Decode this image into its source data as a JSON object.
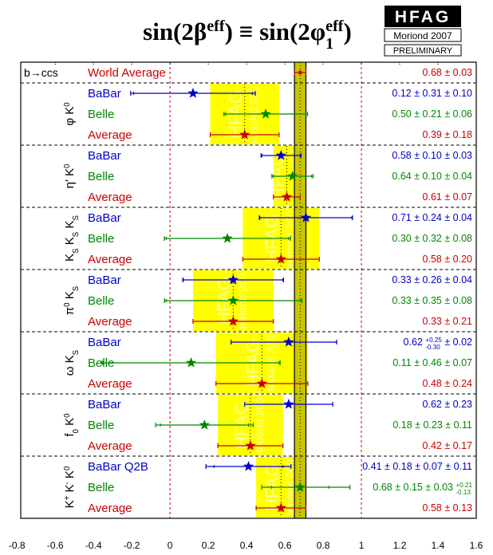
{
  "chart_data": {
    "type": "forest",
    "title_segments": [
      "sin(2β",
      {
        "sup": "eff"
      },
      ") ≡ sin(2φ",
      {
        "sub": "1",
        "sup": "eff"
      },
      ")"
    ],
    "badge": {
      "logo": "HFAG",
      "conference": "Moriond 2007",
      "status": "PRELIMINARY"
    },
    "watermark": [
      "HFAG",
      "Moriond 2007"
    ],
    "xlim": [
      -0.78,
      1.6
    ],
    "xticks": [
      -0.8,
      -0.6,
      -0.4,
      -0.2,
      0,
      0.2,
      0.4,
      0.6,
      0.8,
      1,
      1.2,
      1.4,
      1.6
    ],
    "reference_lines": [
      0,
      1
    ],
    "world_average": {
      "process": "b→ccs",
      "label": "World Average",
      "color": "#cc0000",
      "value": 0.68,
      "errors": [
        0.03
      ],
      "value_label": [
        "0.68 ± 0.03"
      ]
    },
    "groups": [
      {
        "label": [
          "φ K",
          {
            "sup": "0"
          }
        ],
        "rows": [
          {
            "name": "BaBar",
            "color": "#0000cc",
            "value": 0.12,
            "errors": [
              0.31,
              0.1
            ],
            "value_label": [
              "0.12 ± 0.31 ± 0.10"
            ]
          },
          {
            "name": "Belle",
            "color": "#008800",
            "value": 0.5,
            "errors": [
              0.21,
              0.06
            ],
            "value_label": [
              "0.50 ± 0.21 ± 0.06"
            ]
          },
          {
            "name": "Average",
            "color": "#cc0000",
            "value": 0.39,
            "errors": [
              0.18
            ],
            "value_label": [
              "0.39 ± 0.18"
            ]
          }
        ]
      },
      {
        "label": [
          "η′ K",
          {
            "sup": "0"
          }
        ],
        "rows": [
          {
            "name": "BaBar",
            "color": "#0000cc",
            "value": 0.58,
            "errors": [
              0.1,
              0.03
            ],
            "value_label": [
              "0.58 ± 0.10 ± 0.03"
            ]
          },
          {
            "name": "Belle",
            "color": "#008800",
            "value": 0.64,
            "errors": [
              0.1,
              0.04
            ],
            "value_label": [
              "0.64 ± 0.10 ± 0.04"
            ]
          },
          {
            "name": "Average",
            "color": "#cc0000",
            "value": 0.61,
            "errors": [
              0.07
            ],
            "value_label": [
              "0.61 ± 0.07"
            ]
          }
        ]
      },
      {
        "label": [
          "K",
          {
            "sub": "S"
          },
          " K",
          {
            "sub": "S"
          },
          " K",
          {
            "sub": "S"
          }
        ],
        "rows": [
          {
            "name": "BaBar",
            "color": "#0000cc",
            "value": 0.71,
            "errors": [
              0.24,
              0.04
            ],
            "value_label": [
              "0.71 ± 0.24 ± 0.04"
            ]
          },
          {
            "name": "Belle",
            "color": "#008800",
            "value": 0.3,
            "errors": [
              0.32,
              0.08
            ],
            "value_label": [
              "0.30 ± 0.32 ± 0.08"
            ]
          },
          {
            "name": "Average",
            "color": "#cc0000",
            "value": 0.58,
            "errors": [
              0.2
            ],
            "value_label": [
              "0.58 ± 0.20"
            ]
          }
        ]
      },
      {
        "label": [
          "π",
          {
            "sup": "0"
          },
          " K",
          {
            "sub": "S"
          }
        ],
        "rows": [
          {
            "name": "BaBar",
            "color": "#0000cc",
            "value": 0.33,
            "errors": [
              0.26,
              0.04
            ],
            "value_label": [
              "0.33 ± 0.26 ± 0.04"
            ]
          },
          {
            "name": "Belle",
            "color": "#008800",
            "value": 0.33,
            "errors": [
              0.35,
              0.08
            ],
            "value_label": [
              "0.33 ± 0.35 ± 0.08"
            ]
          },
          {
            "name": "Average",
            "color": "#cc0000",
            "value": 0.33,
            "errors": [
              0.21
            ],
            "value_label": [
              "0.33 ± 0.21"
            ]
          }
        ]
      },
      {
        "label": [
          "ω K",
          {
            "sub": "S"
          }
        ],
        "rows": [
          {
            "name": "BaBar",
            "color": "#0000cc",
            "value": 0.62,
            "errors": [
              {
                "plus": 0.25,
                "minus": 0.3
              },
              0.02
            ],
            "value_label": [
              "0.62 ",
              {
                "sup": "+0.25",
                "sub": "-0.30"
              },
              " ± 0.02"
            ]
          },
          {
            "name": "Belle",
            "color": "#008800",
            "value": 0.11,
            "errors": [
              0.46,
              0.07
            ],
            "value_label": [
              "0.11 ± 0.46 ± 0.07"
            ]
          },
          {
            "name": "Average",
            "color": "#cc0000",
            "value": 0.48,
            "errors": [
              0.24
            ],
            "value_label": [
              "0.48 ± 0.24"
            ]
          }
        ]
      },
      {
        "label": [
          "f",
          {
            "sub": "0"
          },
          " K",
          {
            "sup": "0"
          }
        ],
        "rows": [
          {
            "name": "BaBar",
            "color": "#0000cc",
            "value": 0.62,
            "errors": [
              0.23
            ],
            "value_label": [
              "0.62 ± 0.23"
            ]
          },
          {
            "name": "Belle",
            "color": "#008800",
            "value": 0.18,
            "errors": [
              0.23,
              0.11
            ],
            "value_label": [
              "0.18 ± 0.23 ± 0.11"
            ]
          },
          {
            "name": "Average",
            "color": "#cc0000",
            "value": 0.42,
            "errors": [
              0.17
            ],
            "value_label": [
              "0.42 ± 0.17"
            ]
          }
        ]
      },
      {
        "label": [
          "K",
          {
            "sup": "+"
          },
          " K",
          {
            "sup": "-"
          },
          " K",
          {
            "sup": "0"
          }
        ],
        "rows": [
          {
            "name": "BaBar Q2B",
            "color": "#0000cc",
            "value": 0.41,
            "errors": [
              0.18,
              0.07,
              0.11
            ],
            "value_label": [
              "0.41 ± 0.18 ± 0.07 ± 0.11"
            ]
          },
          {
            "name": "Belle",
            "color": "#008800",
            "value": 0.68,
            "errors": [
              0.15,
              0.03,
              {
                "plus": 0.21,
                "minus": 0.13
              }
            ],
            "value_label": [
              "0.68 ± 0.15 ± 0.03 ",
              {
                "sup": "+0.21",
                "sub": "-0.13"
              }
            ]
          },
          {
            "name": "Average",
            "color": "#cc0000",
            "value": 0.58,
            "errors": [
              0.13
            ],
            "value_label": [
              "0.58 ± 0.13"
            ]
          }
        ]
      }
    ]
  }
}
